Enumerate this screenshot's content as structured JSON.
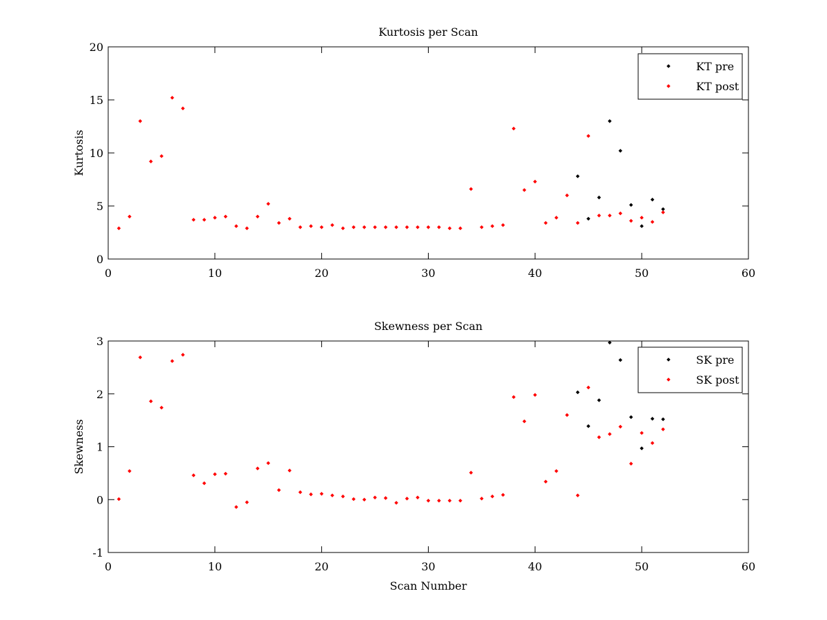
{
  "chart_data": [
    {
      "type": "scatter",
      "title": "Kurtosis per Scan",
      "xlabel": "",
      "ylabel": "Kurtosis",
      "xlim": [
        0,
        60
      ],
      "ylim": [
        0,
        20
      ],
      "xticks": [
        0,
        10,
        20,
        30,
        40,
        50,
        60
      ],
      "yticks": [
        0,
        5,
        10,
        15,
        20
      ],
      "grid": false,
      "legend_position": "top-right",
      "series": [
        {
          "name": "KT pre",
          "color": "#000000",
          "x": [
            44,
            45,
            46,
            47,
            48,
            49,
            50,
            51,
            52
          ],
          "y": [
            7.8,
            3.8,
            5.8,
            13.0,
            10.2,
            5.1,
            3.1,
            5.6,
            4.7
          ]
        },
        {
          "name": "KT post",
          "color": "#ff0000",
          "x": [
            1,
            2,
            3,
            4,
            5,
            6,
            7,
            8,
            9,
            10,
            11,
            12,
            13,
            14,
            15,
            16,
            17,
            18,
            19,
            20,
            21,
            22,
            23,
            24,
            25,
            26,
            27,
            28,
            29,
            30,
            31,
            32,
            33,
            34,
            35,
            36,
            37,
            38,
            39,
            40,
            41,
            42,
            43,
            44,
            45,
            46,
            47,
            48,
            49,
            50,
            51,
            52
          ],
          "y": [
            2.9,
            4.0,
            13.0,
            9.2,
            9.7,
            15.2,
            14.2,
            3.7,
            3.7,
            3.9,
            4.0,
            3.1,
            2.9,
            4.0,
            5.2,
            3.4,
            3.8,
            3.0,
            3.1,
            3.0,
            3.2,
            2.9,
            3.0,
            3.0,
            3.0,
            3.0,
            3.0,
            3.0,
            3.0,
            3.0,
            3.0,
            2.9,
            2.9,
            6.6,
            3.0,
            3.1,
            3.2,
            12.3,
            6.5,
            7.3,
            3.4,
            3.9,
            6.0,
            3.4,
            11.6,
            4.1,
            4.1,
            4.3,
            3.6,
            3.9,
            3.5,
            4.4
          ]
        }
      ]
    },
    {
      "type": "scatter",
      "title": "Skewness per Scan",
      "xlabel": "Scan Number",
      "ylabel": "Skewness",
      "xlim": [
        0,
        60
      ],
      "ylim": [
        -1,
        3
      ],
      "xticks": [
        0,
        10,
        20,
        30,
        40,
        50,
        60
      ],
      "yticks": [
        -1,
        0,
        1,
        2,
        3
      ],
      "grid": false,
      "legend_position": "top-right",
      "series": [
        {
          "name": "SK pre",
          "color": "#000000",
          "x": [
            44,
            45,
            46,
            47,
            48,
            49,
            50,
            51,
            52
          ],
          "y": [
            2.03,
            1.39,
            1.88,
            2.97,
            2.64,
            1.56,
            0.97,
            1.53,
            1.52
          ]
        },
        {
          "name": "SK post",
          "color": "#ff0000",
          "x": [
            1,
            2,
            3,
            4,
            5,
            6,
            7,
            8,
            9,
            10,
            11,
            12,
            13,
            14,
            15,
            16,
            17,
            18,
            19,
            20,
            21,
            22,
            23,
            24,
            25,
            26,
            27,
            28,
            29,
            30,
            31,
            32,
            33,
            34,
            35,
            36,
            37,
            38,
            39,
            40,
            41,
            42,
            43,
            44,
            45,
            46,
            47,
            48,
            49,
            50,
            51,
            52
          ],
          "y": [
            0.01,
            0.54,
            2.69,
            1.86,
            1.74,
            2.62,
            2.74,
            0.46,
            0.31,
            0.48,
            0.49,
            -0.14,
            -0.05,
            0.59,
            0.69,
            0.18,
            0.55,
            0.14,
            0.1,
            0.11,
            0.08,
            0.06,
            0.01,
            0.0,
            0.04,
            0.03,
            -0.06,
            0.02,
            0.04,
            -0.02,
            -0.02,
            -0.02,
            -0.02,
            0.51,
            0.02,
            0.06,
            0.09,
            1.94,
            1.48,
            1.98,
            0.34,
            0.54,
            1.6,
            0.08,
            2.12,
            1.18,
            1.24,
            1.38,
            0.68,
            1.26,
            1.07,
            1.33
          ]
        }
      ]
    }
  ]
}
